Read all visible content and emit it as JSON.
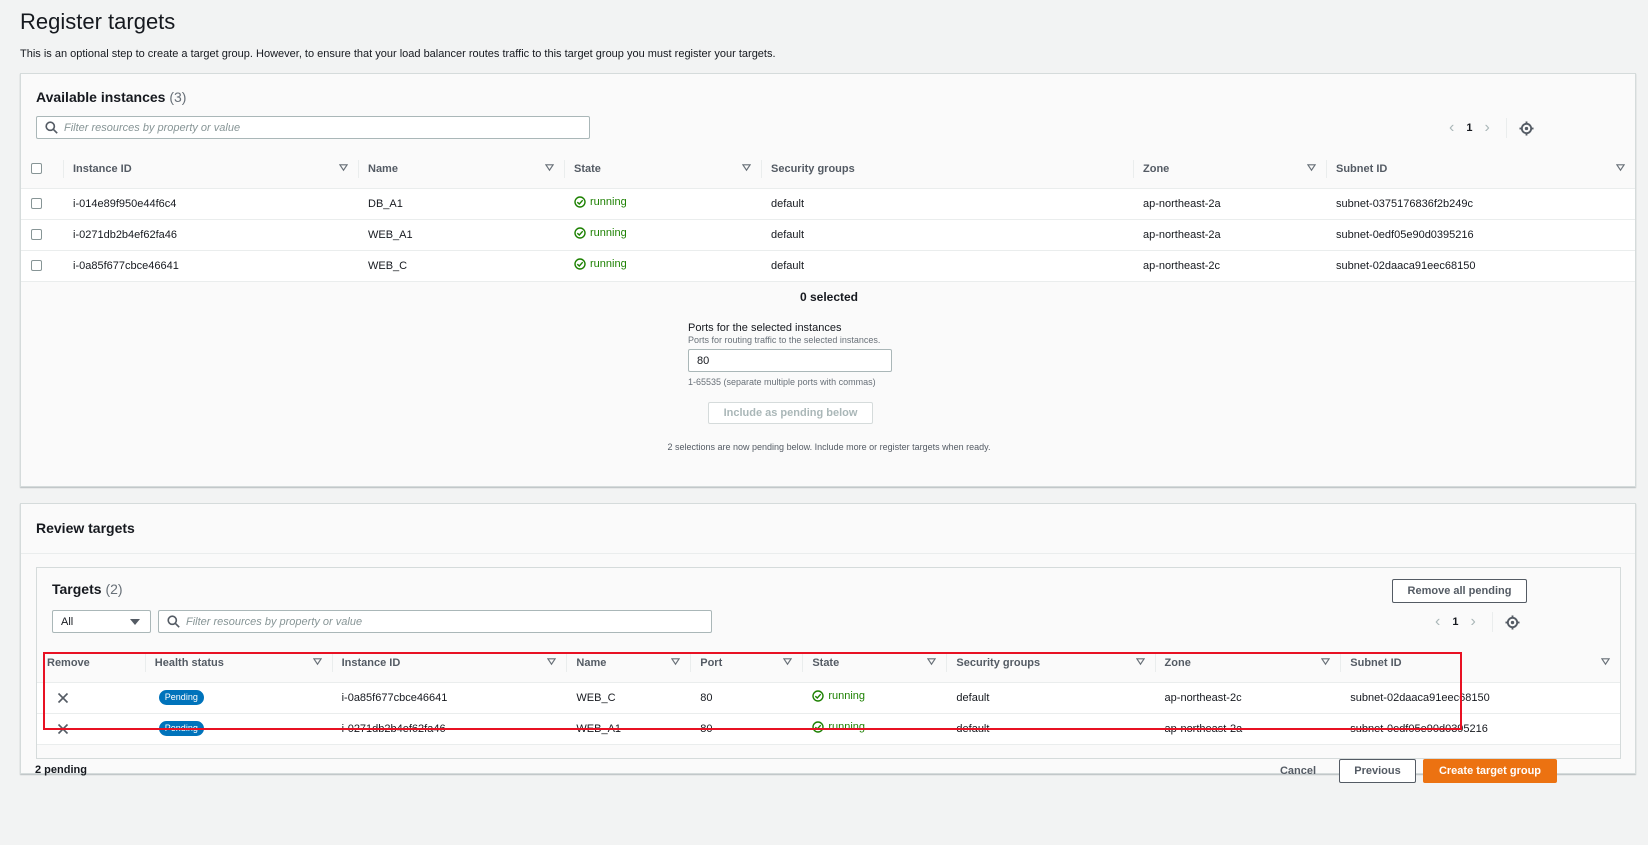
{
  "page": {
    "title": "Register targets",
    "description": "This is an optional step to create a target group. However, to ensure that your load balancer routes traffic to this target group you must register your targets."
  },
  "available": {
    "heading": "Available instances",
    "count": "(3)",
    "filter_placeholder": "Filter resources by property or value",
    "page": "1",
    "columns": [
      "Instance ID",
      "Name",
      "State",
      "Security groups",
      "Zone",
      "Subnet ID"
    ],
    "rows": [
      {
        "id": "i-014e89f950e44f6c4",
        "name": "DB_A1",
        "state": "running",
        "sg": "default",
        "zone": "ap-northeast-2a",
        "subnet": "subnet-0375176836f2b249c"
      },
      {
        "id": "i-0271db2b4ef62fa46",
        "name": "WEB_A1",
        "state": "running",
        "sg": "default",
        "zone": "ap-northeast-2a",
        "subnet": "subnet-0edf05e90d0395216"
      },
      {
        "id": "i-0a85f677cbce46641",
        "name": "WEB_C",
        "state": "running",
        "sg": "default",
        "zone": "ap-northeast-2c",
        "subnet": "subnet-02daaca91eec68150"
      }
    ],
    "selected_text": "0 selected",
    "ports_label": "Ports for the selected instances",
    "ports_help": "Ports for routing traffic to the selected instances.",
    "ports_value": "80",
    "ports_constraint": "1-65535 (separate multiple ports with commas)",
    "include_button": "Include as pending below",
    "pending_note": "2 selections are now pending below. Include more or register targets when ready."
  },
  "review": {
    "heading": "Review targets",
    "targets_heading": "Targets",
    "targets_count": "(2)",
    "remove_all_button": "Remove all pending",
    "filter_select": "All",
    "filter_placeholder": "Filter resources by property or value",
    "page": "1",
    "columns": [
      "Remove",
      "Health status",
      "Instance ID",
      "Name",
      "Port",
      "State",
      "Security groups",
      "Zone",
      "Subnet ID"
    ],
    "rows": [
      {
        "health": "Pending",
        "id": "i-0a85f677cbce46641",
        "name": "WEB_C",
        "port": "80",
        "state": "running",
        "sg": "default",
        "zone": "ap-northeast-2c",
        "subnet": "subnet-02daaca91eec68150"
      },
      {
        "health": "Pending",
        "id": "i-0271db2b4ef62fa46",
        "name": "WEB_A1",
        "port": "80",
        "state": "running",
        "sg": "default",
        "zone": "ap-northeast-2a",
        "subnet": "subnet-0edf05e90d0395216"
      }
    ]
  },
  "footer": {
    "pending": "2 pending",
    "cancel": "Cancel",
    "previous": "Previous",
    "create": "Create target group"
  },
  "colors": {
    "accent_orange": "#ec7211",
    "running_green": "#1d8102",
    "pending_blue": "#0073bb",
    "highlight_red": "#e81123"
  },
  "icons": [
    "search-icon",
    "chevron-left-icon",
    "chevron-right-icon",
    "gear-icon",
    "sort-caret-icon",
    "status-ok-icon",
    "remove-x-icon",
    "dropdown-caret-icon"
  ]
}
